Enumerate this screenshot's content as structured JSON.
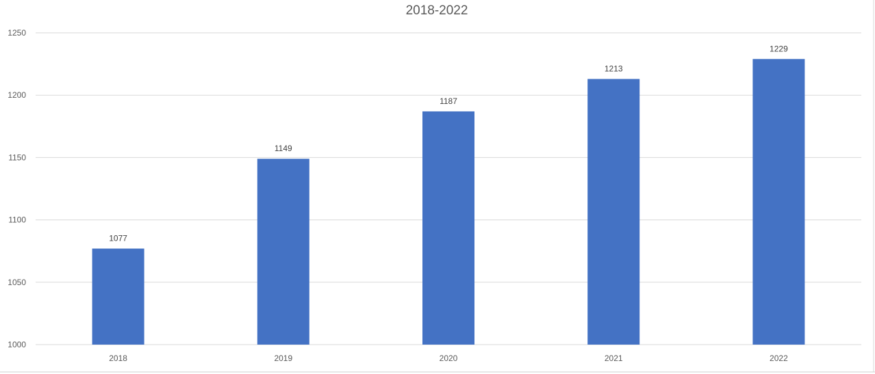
{
  "chart_data": {
    "type": "bar",
    "title": "2018-2022",
    "categories": [
      "2018",
      "2019",
      "2020",
      "2021",
      "2022"
    ],
    "values": [
      1077,
      1149,
      1187,
      1213,
      1229
    ],
    "ylim": [
      1000,
      1250
    ],
    "yticks": [
      1000,
      1050,
      1100,
      1150,
      1200,
      1250
    ],
    "grid": true,
    "data_labels": true,
    "bar_color": "#4472C4",
    "grid_color": "#D9D9D9"
  }
}
